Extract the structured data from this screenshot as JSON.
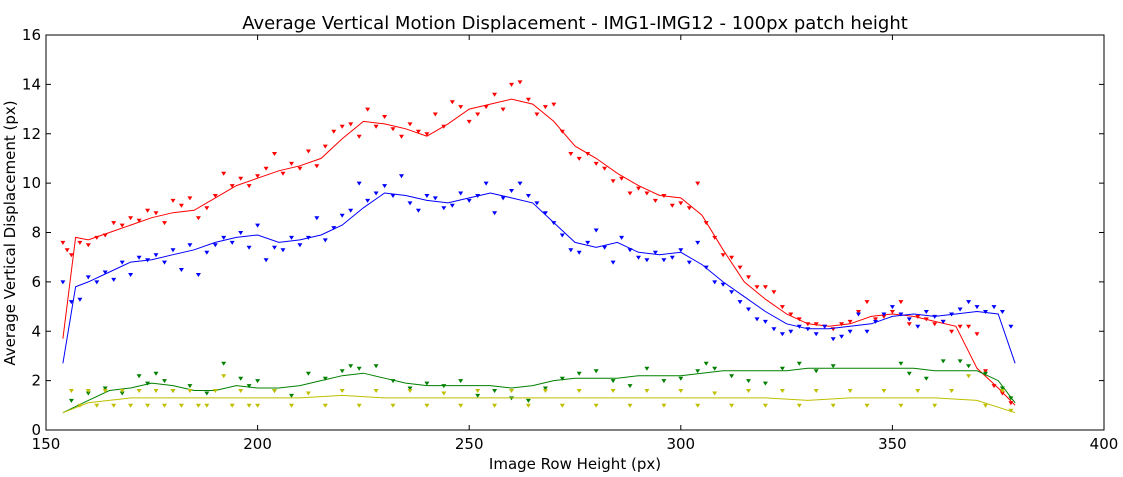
{
  "chart_data": {
    "type": "scatter",
    "title": "Average Vertical Motion Displacement - IMG1-IMG12 - 100px patch height",
    "xlabel": "Image Row Height (px)",
    "ylabel": "Average Vertical Displacement (px)",
    "xlim": [
      150,
      400
    ],
    "ylim": [
      0,
      16
    ],
    "xticks": [
      "150",
      "200",
      "250",
      "300",
      "350",
      "400"
    ],
    "yticks": [
      "0",
      "2",
      "4",
      "6",
      "8",
      "10",
      "12",
      "14",
      "16"
    ],
    "grid": false,
    "legend": "none",
    "series": [
      {
        "color": "#ff0000",
        "trend_x": [
          154,
          157,
          160,
          165,
          170,
          175,
          180,
          185,
          190,
          195,
          200,
          205,
          210,
          215,
          220,
          225,
          230,
          235,
          240,
          245,
          250,
          255,
          260,
          265,
          270,
          275,
          280,
          285,
          290,
          295,
          300,
          305,
          310,
          315,
          320,
          325,
          330,
          335,
          340,
          345,
          350,
          355,
          360,
          365,
          370,
          375,
          379
        ],
        "trend_y": [
          3.7,
          7.8,
          7.7,
          8.0,
          8.3,
          8.6,
          8.8,
          8.9,
          9.4,
          9.9,
          10.2,
          10.5,
          10.7,
          11.0,
          11.8,
          12.5,
          12.4,
          12.2,
          11.9,
          12.4,
          13.0,
          13.2,
          13.4,
          13.2,
          12.5,
          11.5,
          11.0,
          10.4,
          9.9,
          9.5,
          9.4,
          8.7,
          7.3,
          6.0,
          5.3,
          4.7,
          4.3,
          4.2,
          4.3,
          4.6,
          4.7,
          4.6,
          4.4,
          4.2,
          2.5,
          1.7,
          1.0
        ],
        "points_x": [
          154,
          155,
          156,
          158,
          160,
          162,
          164,
          166,
          168,
          170,
          172,
          174,
          176,
          178,
          180,
          182,
          184,
          186,
          188,
          190,
          192,
          194,
          196,
          198,
          200,
          202,
          204,
          206,
          208,
          210,
          212,
          214,
          216,
          218,
          220,
          222,
          224,
          226,
          228,
          230,
          232,
          234,
          236,
          238,
          240,
          242,
          244,
          246,
          248,
          250,
          252,
          254,
          256,
          258,
          260,
          262,
          264,
          266,
          268,
          270,
          272,
          274,
          276,
          278,
          280,
          282,
          284,
          286,
          288,
          290,
          292,
          294,
          296,
          298,
          300,
          302,
          304,
          306,
          308,
          310,
          312,
          314,
          316,
          318,
          320,
          322,
          324,
          326,
          328,
          330,
          332,
          334,
          336,
          338,
          340,
          342,
          344,
          346,
          348,
          350,
          352,
          354,
          356,
          358,
          360,
          362,
          364,
          366,
          368,
          370,
          372,
          374,
          376,
          378
        ],
        "points_y": [
          7.6,
          7.3,
          7.1,
          7.6,
          7.5,
          7.8,
          7.9,
          8.4,
          8.3,
          8.6,
          8.5,
          8.9,
          8.8,
          8.4,
          9.3,
          9.1,
          9.4,
          8.6,
          9.0,
          9.5,
          10.4,
          9.9,
          10.2,
          9.9,
          10.3,
          10.6,
          11.2,
          10.4,
          10.8,
          10.6,
          11.3,
          10.7,
          11.5,
          12.1,
          12.3,
          12.4,
          11.9,
          13.0,
          12.3,
          12.7,
          12.2,
          11.9,
          12.4,
          12.1,
          12.0,
          12.8,
          12.3,
          13.3,
          13.1,
          12.5,
          12.8,
          13.1,
          13.6,
          13.0,
          14.0,
          14.1,
          13.4,
          12.8,
          13.1,
          13.2,
          12.1,
          11.2,
          11.0,
          11.2,
          10.8,
          10.6,
          10.1,
          10.2,
          9.6,
          9.8,
          9.6,
          9.3,
          9.5,
          9.1,
          9.2,
          9.0,
          10.0,
          8.4,
          7.8,
          7.1,
          7.0,
          6.6,
          6.2,
          5.8,
          5.8,
          5.6,
          5.0,
          4.7,
          4.5,
          4.3,
          4.3,
          4.2,
          4.1,
          4.3,
          4.4,
          4.8,
          5.2,
          4.5,
          4.6,
          4.8,
          5.2,
          4.3,
          4.6,
          4.5,
          4.3,
          4.4,
          4.0,
          4.2,
          4.2,
          3.9,
          2.4,
          1.8,
          1.5,
          1.1
        ]
      },
      {
        "color": "#0000ff",
        "trend_x": [
          154,
          157,
          160,
          165,
          170,
          175,
          180,
          185,
          190,
          195,
          200,
          205,
          210,
          215,
          220,
          225,
          230,
          235,
          240,
          245,
          250,
          255,
          260,
          265,
          270,
          275,
          280,
          285,
          290,
          295,
          300,
          305,
          310,
          315,
          320,
          325,
          330,
          335,
          340,
          345,
          350,
          355,
          360,
          365,
          370,
          375,
          379
        ],
        "trend_y": [
          2.7,
          5.8,
          6.0,
          6.4,
          6.8,
          6.9,
          7.1,
          7.3,
          7.6,
          7.8,
          7.9,
          7.6,
          7.7,
          7.9,
          8.3,
          9.0,
          9.6,
          9.5,
          9.3,
          9.2,
          9.4,
          9.6,
          9.4,
          9.2,
          8.4,
          7.6,
          7.4,
          7.6,
          7.2,
          7.1,
          7.2,
          6.7,
          6.0,
          5.4,
          4.8,
          4.3,
          4.1,
          4.1,
          4.2,
          4.3,
          4.6,
          4.7,
          4.6,
          4.7,
          4.8,
          4.7,
          2.7
        ],
        "points_x": [
          154,
          156,
          158,
          160,
          162,
          164,
          166,
          168,
          170,
          172,
          174,
          176,
          178,
          180,
          182,
          184,
          186,
          188,
          190,
          192,
          194,
          196,
          198,
          200,
          202,
          204,
          206,
          208,
          210,
          212,
          214,
          216,
          218,
          220,
          222,
          224,
          226,
          228,
          230,
          232,
          234,
          236,
          238,
          240,
          242,
          244,
          246,
          248,
          250,
          252,
          254,
          256,
          258,
          260,
          262,
          264,
          266,
          268,
          270,
          272,
          274,
          276,
          278,
          280,
          282,
          284,
          286,
          288,
          290,
          292,
          294,
          296,
          298,
          300,
          302,
          304,
          306,
          308,
          310,
          312,
          314,
          316,
          318,
          320,
          322,
          324,
          326,
          328,
          330,
          332,
          334,
          336,
          338,
          340,
          342,
          344,
          346,
          348,
          350,
          352,
          354,
          356,
          358,
          360,
          362,
          364,
          366,
          368,
          370,
          372,
          374,
          376,
          378
        ],
        "points_y": [
          6.0,
          5.2,
          5.3,
          6.2,
          6.0,
          6.4,
          6.1,
          6.8,
          6.3,
          7.0,
          6.9,
          7.1,
          6.8,
          7.3,
          6.5,
          7.5,
          6.3,
          7.2,
          7.5,
          7.8,
          7.6,
          8.0,
          7.4,
          8.3,
          6.9,
          7.4,
          7.3,
          7.8,
          7.5,
          7.8,
          8.6,
          7.7,
          8.2,
          8.7,
          8.9,
          10.0,
          9.3,
          9.6,
          9.9,
          9.5,
          10.3,
          9.2,
          8.9,
          9.5,
          9.4,
          9.0,
          9.1,
          9.6,
          9.3,
          9.5,
          10.0,
          8.8,
          9.4,
          9.7,
          10.0,
          9.5,
          9.2,
          8.8,
          8.4,
          7.9,
          7.3,
          7.2,
          7.6,
          8.1,
          7.4,
          6.8,
          7.8,
          7.3,
          7.0,
          6.9,
          7.2,
          6.9,
          7.0,
          7.3,
          6.8,
          7.6,
          6.6,
          6.0,
          5.9,
          5.6,
          5.2,
          4.9,
          4.5,
          4.4,
          4.1,
          3.9,
          4.0,
          4.2,
          4.1,
          3.9,
          4.2,
          3.7,
          3.8,
          4.0,
          4.7,
          4.0,
          4.4,
          4.7,
          5.0,
          4.7,
          4.5,
          4.2,
          4.8,
          4.6,
          4.4,
          4.7,
          4.9,
          5.2,
          5.0,
          4.8,
          5.0,
          4.8,
          4.2,
          4.0
        ]
      },
      {
        "color": "#008000",
        "trend_x": [
          154,
          160,
          165,
          170,
          175,
          180,
          185,
          190,
          195,
          200,
          205,
          210,
          215,
          220,
          225,
          230,
          235,
          240,
          245,
          250,
          255,
          260,
          265,
          270,
          275,
          280,
          285,
          290,
          295,
          300,
          305,
          310,
          315,
          320,
          325,
          330,
          335,
          340,
          345,
          350,
          355,
          360,
          365,
          370,
          375,
          379
        ],
        "trend_y": [
          0.7,
          1.2,
          1.6,
          1.7,
          1.9,
          1.8,
          1.6,
          1.6,
          1.8,
          1.7,
          1.7,
          1.8,
          2.0,
          2.2,
          2.3,
          2.1,
          1.9,
          1.8,
          1.8,
          1.8,
          1.8,
          1.7,
          1.8,
          2.0,
          2.1,
          2.1,
          2.1,
          2.2,
          2.2,
          2.2,
          2.3,
          2.4,
          2.4,
          2.4,
          2.4,
          2.5,
          2.5,
          2.5,
          2.5,
          2.5,
          2.5,
          2.4,
          2.4,
          2.4,
          2.0,
          1.1
        ],
        "points_x": [
          156,
          160,
          164,
          168,
          172,
          174,
          176,
          178,
          180,
          184,
          188,
          192,
          196,
          198,
          200,
          204,
          208,
          212,
          216,
          220,
          222,
          224,
          228,
          232,
          236,
          240,
          244,
          248,
          252,
          256,
          260,
          264,
          268,
          272,
          276,
          280,
          284,
          288,
          292,
          296,
          300,
          304,
          306,
          308,
          312,
          316,
          320,
          324,
          328,
          332,
          336,
          352,
          354,
          358,
          362,
          366,
          368,
          372,
          376,
          378
        ],
        "points_y": [
          1.2,
          1.5,
          1.7,
          1.5,
          2.2,
          1.9,
          2.3,
          2.0,
          1.6,
          1.8,
          1.5,
          2.7,
          2.1,
          1.8,
          2.0,
          1.6,
          1.4,
          2.3,
          2.1,
          2.4,
          2.6,
          2.5,
          2.6,
          2.0,
          1.7,
          1.9,
          1.8,
          2.0,
          1.4,
          1.6,
          1.3,
          1.2,
          1.7,
          2.1,
          2.3,
          2.4,
          2.0,
          1.8,
          2.5,
          2.0,
          2.1,
          2.4,
          2.7,
          2.5,
          2.2,
          2.0,
          1.9,
          2.5,
          2.7,
          2.4,
          2.6,
          2.7,
          2.3,
          2.1,
          2.8,
          2.8,
          2.6,
          2.3,
          1.7,
          1.3
        ]
      },
      {
        "color": "#bfbf00",
        "trend_x": [
          154,
          160,
          170,
          180,
          190,
          200,
          210,
          220,
          230,
          240,
          250,
          260,
          270,
          280,
          290,
          300,
          310,
          320,
          330,
          340,
          350,
          360,
          370,
          379
        ],
        "trend_y": [
          0.7,
          1.1,
          1.3,
          1.3,
          1.3,
          1.3,
          1.3,
          1.4,
          1.3,
          1.3,
          1.3,
          1.3,
          1.3,
          1.3,
          1.3,
          1.3,
          1.3,
          1.3,
          1.2,
          1.3,
          1.3,
          1.3,
          1.2,
          0.7
        ],
        "points_x": [
          156,
          158,
          160,
          162,
          164,
          166,
          168,
          170,
          172,
          174,
          176,
          178,
          180,
          182,
          184,
          186,
          188,
          190,
          192,
          194,
          196,
          198,
          200,
          204,
          208,
          212,
          216,
          220,
          224,
          228,
          232,
          236,
          240,
          244,
          248,
          252,
          256,
          260,
          264,
          268,
          272,
          276,
          280,
          284,
          288,
          292,
          296,
          300,
          304,
          308,
          312,
          316,
          320,
          324,
          328,
          332,
          336,
          340,
          344,
          348,
          352,
          356,
          360,
          364,
          368,
          372,
          376,
          378
        ],
        "points_y": [
          1.6,
          1.0,
          1.6,
          1.0,
          1.6,
          1.0,
          1.6,
          1.0,
          1.6,
          1.0,
          1.6,
          1.0,
          1.6,
          1.0,
          1.6,
          1.0,
          1.0,
          1.6,
          2.2,
          1.0,
          1.6,
          1.0,
          1.0,
          1.6,
          1.0,
          1.5,
          1.0,
          1.6,
          1.0,
          1.6,
          1.0,
          1.6,
          1.0,
          1.5,
          1.0,
          1.6,
          1.0,
          1.6,
          1.0,
          1.6,
          1.0,
          1.6,
          1.0,
          1.6,
          1.0,
          1.6,
          1.0,
          1.6,
          1.0,
          1.5,
          1.0,
          1.6,
          1.0,
          1.6,
          1.0,
          1.6,
          1.0,
          1.6,
          1.0,
          1.6,
          1.0,
          1.6,
          1.0,
          1.6,
          2.2,
          1.0,
          1.6,
          0.8
        ]
      }
    ]
  }
}
